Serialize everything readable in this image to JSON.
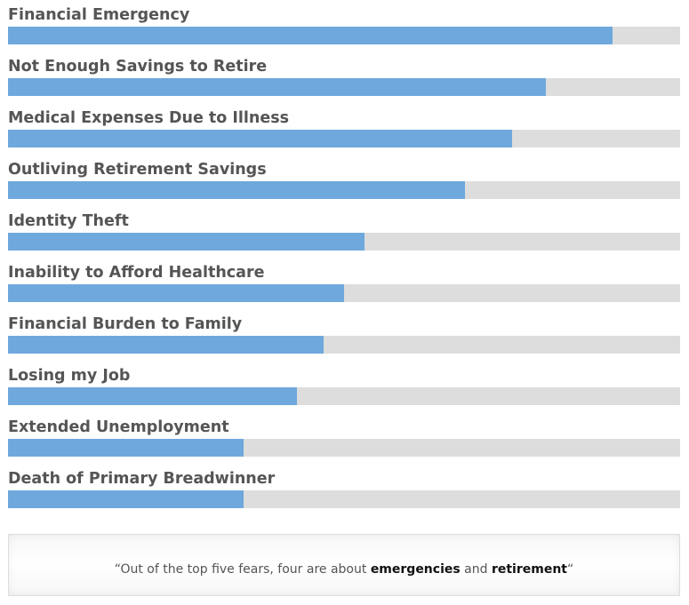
{
  "chart_data": {
    "type": "bar",
    "orientation": "horizontal",
    "categories": [
      "Financial Emergency",
      "Not Enough Savings to Retire",
      "Medical Expenses Due to Illness",
      "Outliving Retirement Savings",
      "Identity Theft",
      "Inability to Afford Healthcare",
      "Financial Burden to Family",
      "Losing my Job",
      "Extended Unemployment",
      "Death of Primary Breadwinner"
    ],
    "values": [
      90,
      80,
      75,
      68,
      53,
      50,
      47,
      43,
      35,
      35
    ],
    "xlim": [
      0,
      100
    ],
    "title": "",
    "xlabel": "",
    "ylabel": "",
    "grid": false,
    "colors": {
      "bar": "#6fa8dc",
      "track": "#dddddd",
      "label": "#555555"
    }
  },
  "quote": {
    "open_mark": "“",
    "text_1": "Out of the top five fears, four are about ",
    "bold_1": "emergencies",
    "text_2": " and ",
    "bold_2": "retirement",
    "close_mark": "“"
  }
}
